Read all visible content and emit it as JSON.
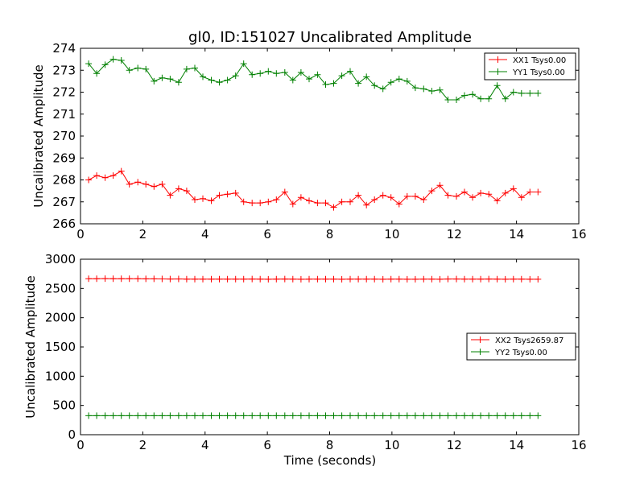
{
  "chart_data": [
    {
      "type": "line",
      "title": "gl0, ID:151027 Uncalibrated Amplitude",
      "xlabel": "",
      "ylabel": "Uncalibrated Amplitude",
      "xlim": [
        0,
        16
      ],
      "ylim": [
        266,
        274
      ],
      "xticks": [
        0,
        2,
        4,
        6,
        8,
        10,
        12,
        14,
        16
      ],
      "yticks": [
        266,
        267,
        268,
        269,
        270,
        271,
        272,
        273,
        274
      ],
      "legend_position": "top-right",
      "x": [
        0.26,
        0.52,
        0.79,
        1.05,
        1.31,
        1.57,
        1.84,
        2.1,
        2.36,
        2.62,
        2.88,
        3.15,
        3.41,
        3.67,
        3.93,
        4.2,
        4.46,
        4.72,
        4.98,
        5.24,
        5.51,
        5.77,
        6.03,
        6.29,
        6.56,
        6.82,
        7.08,
        7.34,
        7.61,
        7.87,
        8.13,
        8.39,
        8.66,
        8.92,
        9.18,
        9.44,
        9.71,
        9.97,
        10.23,
        10.49,
        10.75,
        11.02,
        11.28,
        11.54,
        11.8,
        12.07,
        12.33,
        12.59,
        12.85,
        13.11,
        13.38,
        13.64,
        13.9,
        14.16,
        14.43,
        14.69
      ],
      "series": [
        {
          "name": "XX1 Tsys0.00",
          "color": "#ff0000",
          "values": [
            268.0,
            268.2,
            268.1,
            268.2,
            268.4,
            267.8,
            267.9,
            267.8,
            267.7,
            267.8,
            267.3,
            267.6,
            267.5,
            267.1,
            267.15,
            267.05,
            267.3,
            267.35,
            267.4,
            267.0,
            266.95,
            266.95,
            267.0,
            267.1,
            267.45,
            266.9,
            267.2,
            267.05,
            266.95,
            266.95,
            266.75,
            267.0,
            267.0,
            267.3,
            266.85,
            267.1,
            267.3,
            267.2,
            266.9,
            267.25,
            267.25,
            267.1,
            267.5,
            267.75,
            267.3,
            267.25,
            267.45,
            267.2,
            267.4,
            267.35,
            267.05,
            267.4,
            267.6,
            267.2,
            267.45,
            267.45
          ]
        },
        {
          "name": "YY1 Tsys0.00",
          "color": "#008000",
          "values": [
            273.3,
            272.85,
            273.25,
            273.5,
            273.45,
            273.0,
            273.1,
            273.05,
            272.5,
            272.65,
            272.6,
            272.45,
            273.05,
            273.1,
            272.7,
            272.55,
            272.45,
            272.55,
            272.75,
            273.3,
            272.8,
            272.85,
            272.95,
            272.85,
            272.9,
            272.55,
            272.9,
            272.6,
            272.8,
            272.35,
            272.4,
            272.75,
            272.95,
            272.4,
            272.7,
            272.3,
            272.15,
            272.45,
            272.6,
            272.5,
            272.2,
            272.15,
            272.05,
            272.1,
            271.65,
            271.65,
            271.85,
            271.9,
            271.7,
            271.7,
            272.3,
            271.7,
            272.0,
            271.95,
            271.95,
            271.95
          ]
        }
      ]
    },
    {
      "type": "line",
      "title": "",
      "xlabel": "Time (seconds)",
      "ylabel": "Uncalibrated Amplitude",
      "xlim": [
        0,
        16
      ],
      "ylim": [
        0,
        3000
      ],
      "xticks": [
        0,
        2,
        4,
        6,
        8,
        10,
        12,
        14,
        16
      ],
      "yticks": [
        0,
        500,
        1000,
        1500,
        2000,
        2500,
        3000
      ],
      "legend_position": "center-right",
      "x": [
        0.26,
        0.52,
        0.79,
        1.05,
        1.31,
        1.57,
        1.84,
        2.1,
        2.36,
        2.62,
        2.88,
        3.15,
        3.41,
        3.67,
        3.93,
        4.2,
        4.46,
        4.72,
        4.98,
        5.24,
        5.51,
        5.77,
        6.03,
        6.29,
        6.56,
        6.82,
        7.08,
        7.34,
        7.61,
        7.87,
        8.13,
        8.39,
        8.66,
        8.92,
        9.18,
        9.44,
        9.71,
        9.97,
        10.23,
        10.49,
        10.75,
        11.02,
        11.28,
        11.54,
        11.8,
        12.07,
        12.33,
        12.59,
        12.85,
        13.11,
        13.38,
        13.64,
        13.9,
        14.16,
        14.43,
        14.69
      ],
      "series": [
        {
          "name": "XX2 Tsys2659.87",
          "color": "#ff0000",
          "values": [
            2665,
            2667,
            2668,
            2667,
            2666,
            2667,
            2665,
            2664,
            2664,
            2663,
            2661,
            2663,
            2660,
            2659,
            2659,
            2660,
            2659,
            2659,
            2660,
            2659,
            2661,
            2659,
            2658,
            2660,
            2661,
            2659,
            2658,
            2659,
            2659,
            2659,
            2659,
            2658,
            2659,
            2659,
            2659,
            2659,
            2658,
            2660,
            2659,
            2658,
            2658,
            2659,
            2659,
            2658,
            2661,
            2662,
            2659,
            2660,
            2659,
            2662,
            2659,
            2658,
            2660,
            2659,
            2658,
            2658
          ]
        },
        {
          "name": "YY2 Tsys0.00",
          "color": "#008000",
          "values": [
            325,
            325,
            325,
            325,
            325,
            325,
            325,
            325,
            325,
            325,
            325,
            325,
            325,
            325,
            325,
            325,
            325,
            325,
            325,
            325,
            325,
            325,
            325,
            325,
            325,
            325,
            325,
            325,
            325,
            325,
            325,
            325,
            325,
            325,
            325,
            325,
            325,
            325,
            325,
            325,
            325,
            325,
            325,
            325,
            325,
            325,
            325,
            325,
            325,
            325,
            325,
            325,
            325,
            325,
            325,
            325
          ]
        }
      ]
    }
  ]
}
